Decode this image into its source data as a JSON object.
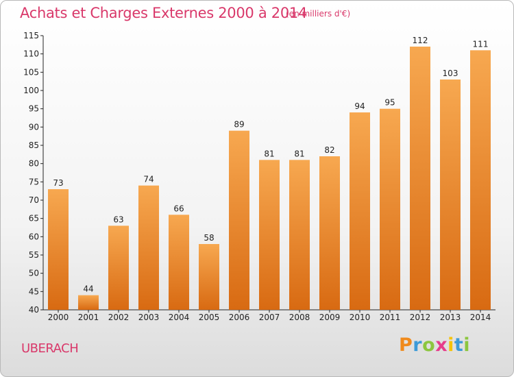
{
  "title": "Achats et Charges Externes 2000 à 2014",
  "unit_note": "(en milliers d'€)",
  "commune": "UBERACH",
  "brand": {
    "letters": [
      "P",
      "r",
      "o",
      "x",
      "i",
      "t",
      "i"
    ],
    "colors": [
      "#f08a1c",
      "#3d9bd8",
      "#8cc63f",
      "#e63d8b",
      "#f5c30a",
      "#3d9bd8",
      "#8cc63f"
    ]
  },
  "colors": {
    "bar_top": "#f7a850",
    "bar_bottom": "#d86a12",
    "title": "#d9386a"
  },
  "chart_data": {
    "type": "bar",
    "categories": [
      "2000",
      "2001",
      "2002",
      "2003",
      "2004",
      "2005",
      "2006",
      "2007",
      "2008",
      "2009",
      "2010",
      "2011",
      "2012",
      "2013",
      "2014"
    ],
    "values": [
      73,
      44,
      63,
      74,
      66,
      58,
      89,
      81,
      81,
      82,
      94,
      95,
      112,
      103,
      111
    ],
    "ylim": [
      40,
      115
    ],
    "yticks": [
      40,
      45,
      50,
      55,
      60,
      65,
      70,
      75,
      80,
      85,
      90,
      95,
      100,
      105,
      110,
      115
    ],
    "grid": false
  }
}
